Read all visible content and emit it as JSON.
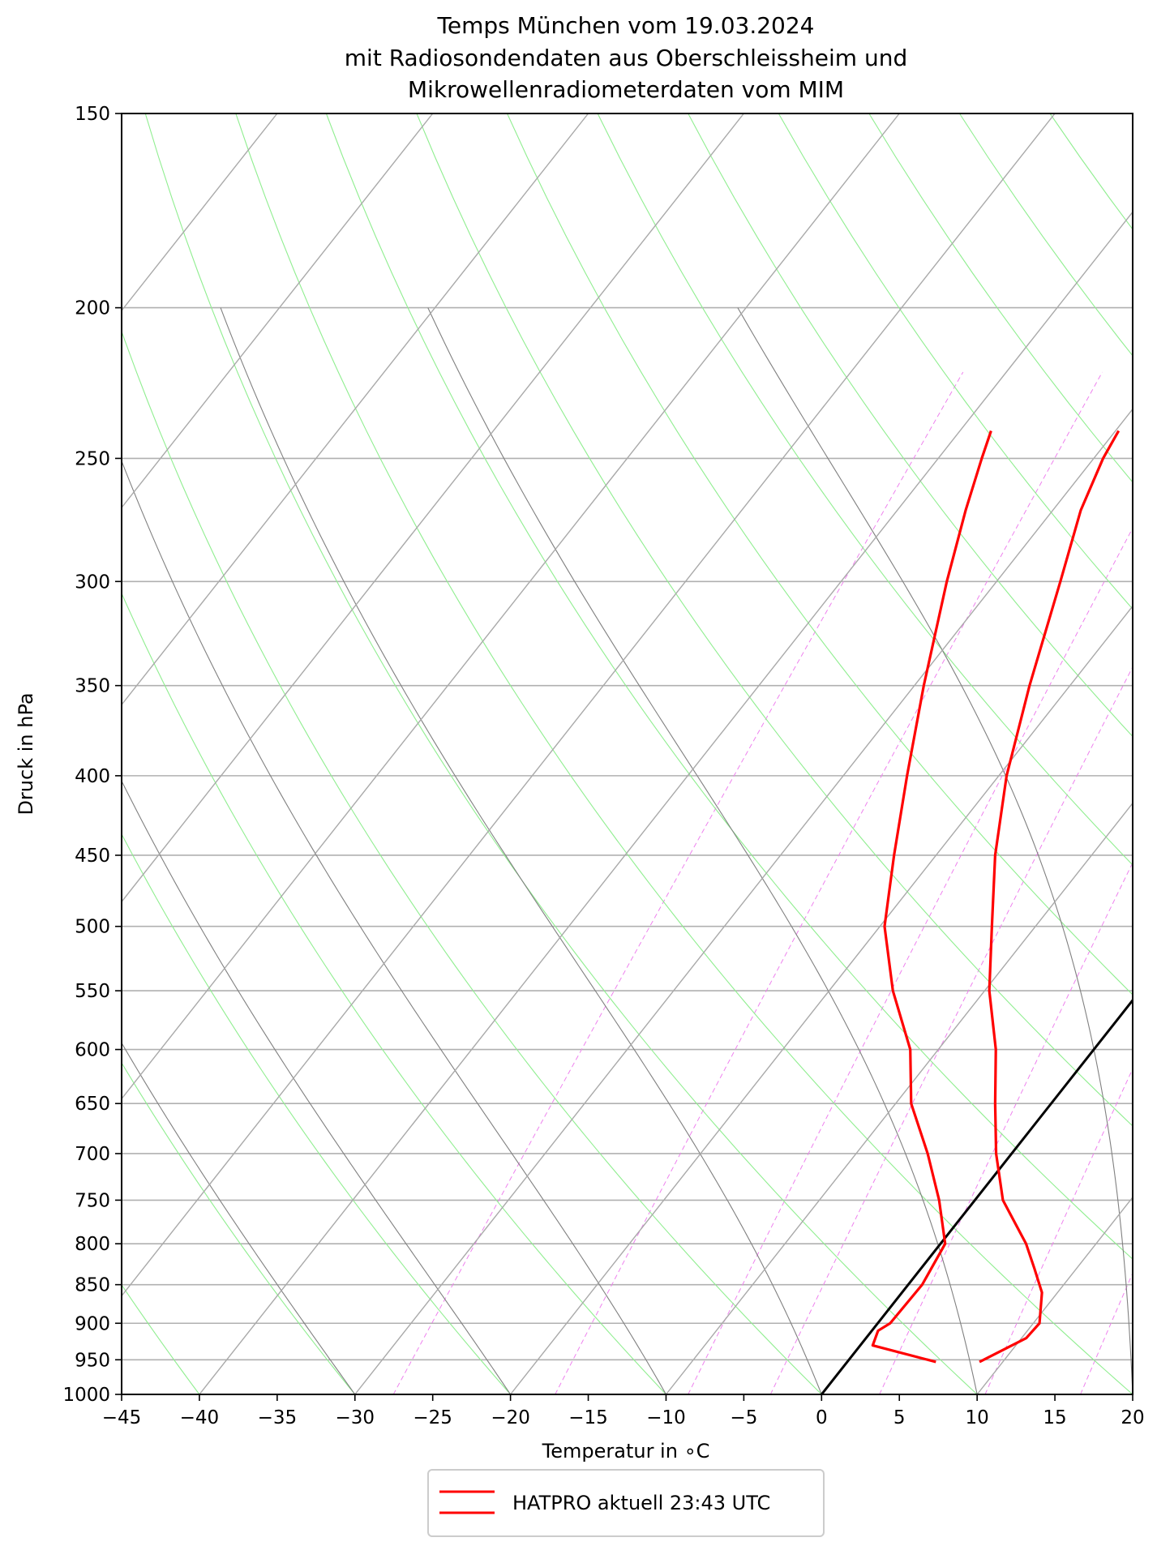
{
  "chart_data": {
    "type": "line",
    "subtype": "skew-t log-p diagram",
    "title_lines": [
      "Temps München vom 19.03.2024",
      "mit Radiosondendaten aus Oberschleissheim und",
      "Mikrowellenradiometerdaten vom MIM"
    ],
    "xlabel": "Temperatur in ∘C",
    "ylabel": "Druck in hPa",
    "xlim": [
      -45,
      20
    ],
    "ylim": [
      1000,
      150
    ],
    "y_scale": "log",
    "x_ticks": [
      "−45",
      "−40",
      "−35",
      "−30",
      "−25",
      "−20",
      "−15",
      "−10",
      "−5",
      "0",
      "5",
      "10",
      "15",
      "20"
    ],
    "y_ticks": [
      150,
      200,
      250,
      300,
      350,
      400,
      450,
      500,
      550,
      600,
      650,
      700,
      750,
      800,
      850,
      900,
      950,
      1000
    ],
    "grid": true,
    "legend": {
      "placement": "bottom-center",
      "entries": [
        "HATPRO aktuell 23:43 UTC"
      ]
    },
    "colors": {
      "profile": "#ff0000",
      "isotherm_zero": "#000000",
      "isotherms": "#a9a9a9",
      "dry_adiabats": "#90ee90",
      "moist_adiabats": "#808080",
      "mixing_ratio": "#ee82ee",
      "grid": "#b0b0b0"
    },
    "series": [
      {
        "name": "HATPRO aktuell 23:43 UTC",
        "role": "temperature",
        "points": [
          [
            8.5,
            953
          ],
          [
            10.3,
            920
          ],
          [
            10.4,
            900
          ],
          [
            9.0,
            860
          ],
          [
            7.3,
            830
          ],
          [
            5.5,
            800
          ],
          [
            1.8,
            750
          ],
          [
            -1.0,
            700
          ],
          [
            -3.6,
            650
          ],
          [
            -6.3,
            600
          ],
          [
            -9.7,
            550
          ],
          [
            -12.8,
            500
          ],
          [
            -16.2,
            450
          ],
          [
            -19.5,
            400
          ],
          [
            -22.6,
            350
          ],
          [
            -25.9,
            300
          ],
          [
            -28.2,
            270
          ],
          [
            -29.4,
            250
          ],
          [
            -29.8,
            240
          ]
        ]
      },
      {
        "name": "HATPRO aktuell 23:43 UTC",
        "role": "dewpoint",
        "points": [
          [
            5.7,
            953
          ],
          [
            0.8,
            930
          ],
          [
            0.4,
            910
          ],
          [
            0.8,
            900
          ],
          [
            0.9,
            850
          ],
          [
            0.3,
            800
          ],
          [
            -2.3,
            750
          ],
          [
            -5.4,
            700
          ],
          [
            -9.0,
            650
          ],
          [
            -11.8,
            600
          ],
          [
            -15.9,
            550
          ],
          [
            -19.7,
            500
          ],
          [
            -22.7,
            450
          ],
          [
            -25.9,
            400
          ],
          [
            -29.4,
            350
          ],
          [
            -33.2,
            300
          ],
          [
            -35.6,
            270
          ],
          [
            -37.2,
            250
          ],
          [
            -38.0,
            240
          ]
        ]
      }
    ]
  }
}
